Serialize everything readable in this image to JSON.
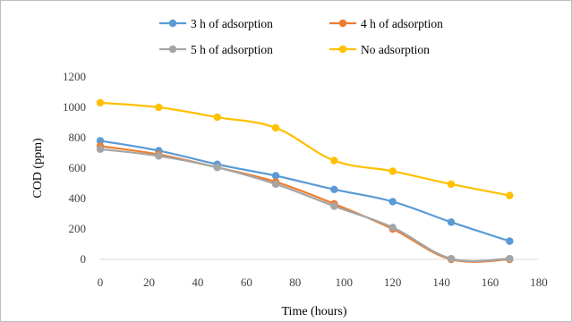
{
  "chart_data": {
    "type": "line",
    "title": "",
    "xlabel": "Time (hours)",
    "ylabel": "COD (ppm)",
    "xlim": [
      0,
      180
    ],
    "ylim": [
      0,
      1200
    ],
    "xticks": [
      0,
      20,
      40,
      60,
      80,
      100,
      120,
      140,
      160,
      180
    ],
    "yticks": [
      0,
      200,
      400,
      600,
      800,
      1000,
      1200
    ],
    "grid": false,
    "legend_position": "top",
    "series": [
      {
        "name": "3 h of adsorption",
        "color": "#5b9bd5",
        "x": [
          0,
          24,
          48,
          72,
          96,
          120,
          144,
          168
        ],
        "y": [
          780,
          715,
          625,
          550,
          460,
          380,
          245,
          120
        ]
      },
      {
        "name": "4 h of adsorption",
        "color": "#ed7d31",
        "x": [
          0,
          24,
          48,
          72,
          96,
          120,
          144,
          168
        ],
        "y": [
          745,
          690,
          605,
          510,
          365,
          200,
          0,
          0
        ]
      },
      {
        "name": "5 h of adsorption",
        "color": "#a5a5a5",
        "x": [
          0,
          24,
          48,
          72,
          96,
          120,
          144,
          168
        ],
        "y": [
          725,
          680,
          605,
          495,
          350,
          210,
          5,
          5
        ]
      },
      {
        "name": "No adsorption",
        "color": "#ffc000",
        "x": [
          0,
          24,
          48,
          72,
          96,
          120,
          144,
          168
        ],
        "y": [
          1030,
          1000,
          935,
          865,
          650,
          580,
          495,
          420
        ]
      }
    ]
  }
}
